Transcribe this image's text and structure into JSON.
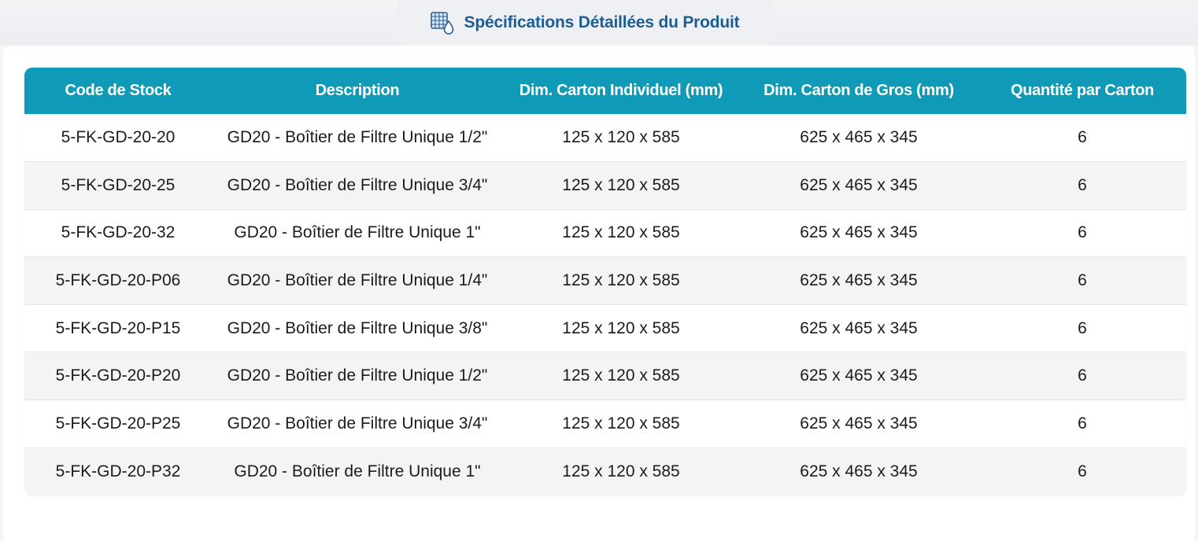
{
  "header": {
    "title": "Spécifications Détaillées du Produit",
    "icon": "filter-specs-icon"
  },
  "table": {
    "columns": [
      "Code de Stock",
      "Description",
      "Dim. Carton Individuel (mm)",
      "Dim. Carton de Gros (mm)",
      "Quantité par Carton"
    ],
    "rows": [
      [
        "5-FK-GD-20-20",
        "GD20 - Boîtier de Filtre Unique 1/2\"",
        "125 x 120 x 585",
        "625 x 465 x 345",
        "6"
      ],
      [
        "5-FK-GD-20-25",
        "GD20 - Boîtier de Filtre Unique 3/4\"",
        "125 x 120 x 585",
        "625 x 465 x 345",
        "6"
      ],
      [
        "5-FK-GD-20-32",
        "GD20 - Boîtier de Filtre Unique 1\"",
        "125 x 120 x 585",
        "625 x 465 x 345",
        "6"
      ],
      [
        "5-FK-GD-20-P06",
        "GD20 - Boîtier de Filtre Unique 1/4\"",
        "125 x 120 x 585",
        "625 x 465 x 345",
        "6"
      ],
      [
        "5-FK-GD-20-P15",
        "GD20 - Boîtier de Filtre Unique 3/8\"",
        "125 x 120 x 585",
        "625 x 465 x 345",
        "6"
      ],
      [
        "5-FK-GD-20-P20",
        "GD20 - Boîtier de Filtre Unique 1/2\"",
        "125 x 120 x 585",
        "625 x 465 x 345",
        "6"
      ],
      [
        "5-FK-GD-20-P25",
        "GD20 - Boîtier de Filtre Unique 3/4\"",
        "125 x 120 x 585",
        "625 x 465 x 345",
        "6"
      ],
      [
        "5-FK-GD-20-P32",
        "GD20 - Boîtier de Filtre Unique 1\"",
        "125 x 120 x 585",
        "625 x 465 x 345",
        "6"
      ]
    ]
  },
  "colors": {
    "header_bg": "#0f9ab8",
    "title": "#1c5d94",
    "stripe": "#f3f4f6"
  }
}
